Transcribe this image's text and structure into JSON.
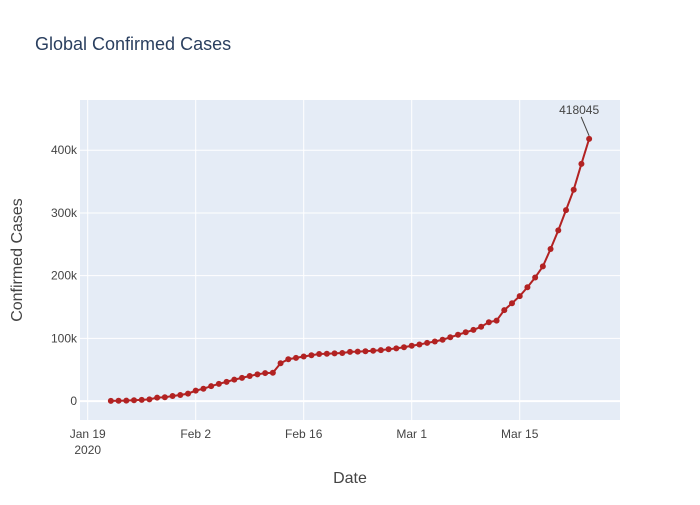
{
  "chart_data": {
    "type": "line",
    "title": "Global Confirmed Cases",
    "xlabel": "Date",
    "ylabel": "Confirmed Cases",
    "x_tick_labels": [
      {
        "date": "2020-01-19",
        "label": "Jan 19",
        "sublabel": "2020"
      },
      {
        "date": "2020-02-02",
        "label": "Feb 2",
        "sublabel": ""
      },
      {
        "date": "2020-02-16",
        "label": "Feb 16",
        "sublabel": ""
      },
      {
        "date": "2020-03-01",
        "label": "Mar 1",
        "sublabel": ""
      },
      {
        "date": "2020-03-15",
        "label": "Mar 15",
        "sublabel": ""
      }
    ],
    "y_ticks": [
      {
        "value": 0,
        "label": "0"
      },
      {
        "value": 100000,
        "label": "100k"
      },
      {
        "value": 200000,
        "label": "200k"
      },
      {
        "value": 300000,
        "label": "300k"
      },
      {
        "value": 400000,
        "label": "400k"
      }
    ],
    "xlim": [
      "2020-01-18",
      "2020-03-28"
    ],
    "ylim": [
      -30000,
      480000
    ],
    "grid": true,
    "colors": {
      "background": "#ffffff",
      "plot_background": "#e5ecf6",
      "grid": "#ffffff",
      "line": "#b22222",
      "marker": "#b22222",
      "text": "#444444",
      "title": "#2a3f5f",
      "annotation_arrow": "#444444"
    },
    "annotation": {
      "date": "2020-03-24",
      "value": 418045,
      "text": "418045"
    },
    "series": [
      {
        "x": [
          "2020-01-22",
          "2020-01-23",
          "2020-01-24",
          "2020-01-25",
          "2020-01-26",
          "2020-01-27",
          "2020-01-28",
          "2020-01-29",
          "2020-01-30",
          "2020-01-31",
          "2020-02-01",
          "2020-02-02",
          "2020-02-03",
          "2020-02-04",
          "2020-02-05",
          "2020-02-06",
          "2020-02-07",
          "2020-02-08",
          "2020-02-09",
          "2020-02-10",
          "2020-02-11",
          "2020-02-12",
          "2020-02-13",
          "2020-02-14",
          "2020-02-15",
          "2020-02-16",
          "2020-02-17",
          "2020-02-18",
          "2020-02-19",
          "2020-02-20",
          "2020-02-21",
          "2020-02-22",
          "2020-02-23",
          "2020-02-24",
          "2020-02-25",
          "2020-02-26",
          "2020-02-27",
          "2020-02-28",
          "2020-02-29",
          "2020-03-01",
          "2020-03-02",
          "2020-03-03",
          "2020-03-04",
          "2020-03-05",
          "2020-03-06",
          "2020-03-07",
          "2020-03-08",
          "2020-03-09",
          "2020-03-10",
          "2020-03-11",
          "2020-03-12",
          "2020-03-13",
          "2020-03-14",
          "2020-03-15",
          "2020-03-16",
          "2020-03-17",
          "2020-03-18",
          "2020-03-19",
          "2020-03-20",
          "2020-03-21",
          "2020-03-22",
          "2020-03-23",
          "2020-03-24"
        ],
        "values": [
          555,
          654,
          941,
          1434,
          2118,
          2927,
          5578,
          6166,
          8234,
          9927,
          12038,
          16787,
          19881,
          23892,
          27635,
          30794,
          34391,
          37120,
          40150,
          42762,
          44802,
          45221,
          60368,
          66885,
          69030,
          71224,
          73258,
          75136,
          75639,
          76197,
          76819,
          78572,
          78958,
          79561,
          80406,
          81388,
          82746,
          84112,
          86011,
          88369,
          90306,
          92840,
          95120,
          97886,
          101801,
          105847,
          109821,
          113590,
          118620,
          125875,
          128352,
          145205,
          156101,
          167454,
          181574,
          197102,
          214821,
          242570,
          272208,
          304507,
          337020,
          378287,
          418045
        ]
      }
    ]
  }
}
